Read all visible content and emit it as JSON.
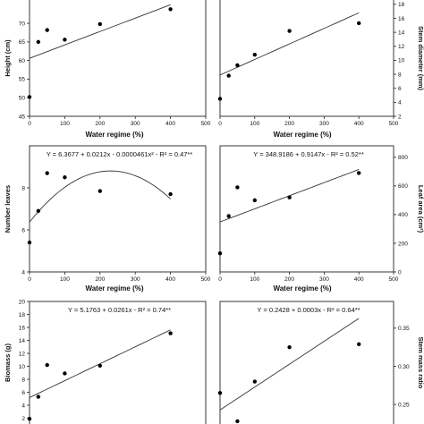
{
  "chart_data": [
    {
      "id": "height",
      "type": "scatter",
      "ylabel": "Height (cm)",
      "xlabel": "Water regime (%)",
      "equation": "",
      "y_axis_side": "left",
      "xlim": [
        0,
        500
      ],
      "ylim": [
        45,
        77
      ],
      "xticks": [
        "0",
        "100",
        "200",
        "300",
        "400",
        "500"
      ],
      "yticks": [
        "45",
        "50",
        "55",
        "60",
        "65",
        "70"
      ],
      "ytick_values": [
        45,
        50,
        55,
        60,
        65,
        70
      ],
      "points": [
        [
          0,
          50.2
        ],
        [
          25,
          65.0
        ],
        [
          50,
          68.2
        ],
        [
          100,
          65.6
        ],
        [
          200,
          69.8
        ],
        [
          400,
          73.8
        ]
      ],
      "fit": {
        "kind": "linear",
        "a": 60.6,
        "b": 0.036
      }
    },
    {
      "id": "stem-diameter",
      "type": "scatter",
      "ylabel": "Stem diameter (mm)",
      "xlabel": "Water regime (%)",
      "equation": "",
      "y_axis_side": "right",
      "xlim": [
        0,
        500
      ],
      "ylim": [
        2,
        19
      ],
      "xticks": [
        "0",
        "100",
        "200",
        "300",
        "400",
        "500"
      ],
      "yticks": [
        "2",
        "4",
        "6",
        "8",
        "10",
        "12",
        "14",
        "16",
        "18"
      ],
      "ytick_values": [
        2,
        4,
        6,
        8,
        10,
        12,
        14,
        16,
        18
      ],
      "points": [
        [
          0,
          4.5
        ],
        [
          25,
          7.8
        ],
        [
          50,
          9.3
        ],
        [
          100,
          10.8
        ],
        [
          200,
          14.2
        ],
        [
          400,
          15.3
        ]
      ],
      "fit": {
        "kind": "linear",
        "a": 7.9,
        "b": 0.0222
      }
    },
    {
      "id": "number-leaves",
      "type": "scatter",
      "ylabel": "Number leaves",
      "xlabel": "Water regime (%)",
      "equation": "Y = 6.3677 + 0.0212x - 0.0000461x² - R² = 0.47**",
      "y_axis_side": "left",
      "xlim": [
        0,
        500
      ],
      "ylim": [
        4,
        10
      ],
      "xticks": [
        "0",
        "100",
        "200",
        "300",
        "400",
        "500"
      ],
      "yticks": [
        "4",
        "6",
        "8"
      ],
      "ytick_values": [
        4,
        6,
        8
      ],
      "points": [
        [
          0,
          5.4
        ],
        [
          25,
          6.9
        ],
        [
          50,
          8.7
        ],
        [
          100,
          8.5
        ],
        [
          200,
          7.85
        ],
        [
          400,
          7.7
        ]
      ],
      "fit": {
        "kind": "quadratic",
        "a": 6.3677,
        "b": 0.0212,
        "c": -4.61e-05
      }
    },
    {
      "id": "leaf-area",
      "type": "scatter",
      "ylabel": "Leaf area (cm²)",
      "xlabel": "Water regime (%)",
      "equation": "Y = 348.9186 + 0.9147x - R² = 0.52**",
      "y_axis_side": "right",
      "xlim": [
        0,
        500
      ],
      "ylim": [
        0,
        880
      ],
      "xticks": [
        "0",
        "100",
        "200",
        "300",
        "400",
        "500"
      ],
      "yticks": [
        "0",
        "200",
        "400",
        "600",
        "800"
      ],
      "ytick_values": [
        0,
        200,
        400,
        600,
        800
      ],
      "points": [
        [
          0,
          130
        ],
        [
          25,
          390
        ],
        [
          50,
          590
        ],
        [
          100,
          500
        ],
        [
          200,
          520
        ],
        [
          400,
          690
        ]
      ],
      "fit": {
        "kind": "linear",
        "a": 348.9186,
        "b": 0.9147
      }
    },
    {
      "id": "biomass",
      "type": "scatter",
      "ylabel": "Biomass (g)",
      "xlabel": "",
      "equation": "Y = 5.1763 + 0.0261x - R² = 0.74**",
      "y_axis_side": "left",
      "xlim": [
        0,
        500
      ],
      "ylim": [
        0,
        20
      ],
      "xticks": [],
      "yticks": [
        "2",
        "4",
        "6",
        "8",
        "10",
        "12",
        "14",
        "16",
        "18",
        "20"
      ],
      "ytick_values": [
        2,
        4,
        6,
        8,
        10,
        12,
        14,
        16,
        18,
        20
      ],
      "points": [
        [
          0,
          1.9
        ],
        [
          25,
          5.3
        ],
        [
          50,
          10.2
        ],
        [
          100,
          8.9
        ],
        [
          200,
          10.1
        ],
        [
          400,
          15.1
        ]
      ],
      "fit": {
        "kind": "linear",
        "a": 5.1763,
        "b": 0.0261
      }
    },
    {
      "id": "stem-mass-ratio",
      "type": "scatter",
      "ylabel": "Stem mass ratio",
      "xlabel": "",
      "equation": "Y = 0.2428 + 0.0003x - R² = 0.64**",
      "y_axis_side": "right",
      "xlim": [
        0,
        500
      ],
      "ylim": [
        0.215,
        0.385
      ],
      "xticks": [],
      "yticks": [
        "0.25",
        "0.30",
        "0.35"
      ],
      "ytick_values": [
        0.25,
        0.3,
        0.35
      ],
      "points": [
        [
          0,
          0.265
        ],
        [
          25,
          0.22
        ],
        [
          50,
          0.228
        ],
        [
          100,
          0.28
        ],
        [
          200,
          0.325
        ],
        [
          400,
          0.329
        ]
      ],
      "fit": {
        "kind": "linear",
        "a": 0.2428,
        "b": 0.0003
      }
    }
  ]
}
